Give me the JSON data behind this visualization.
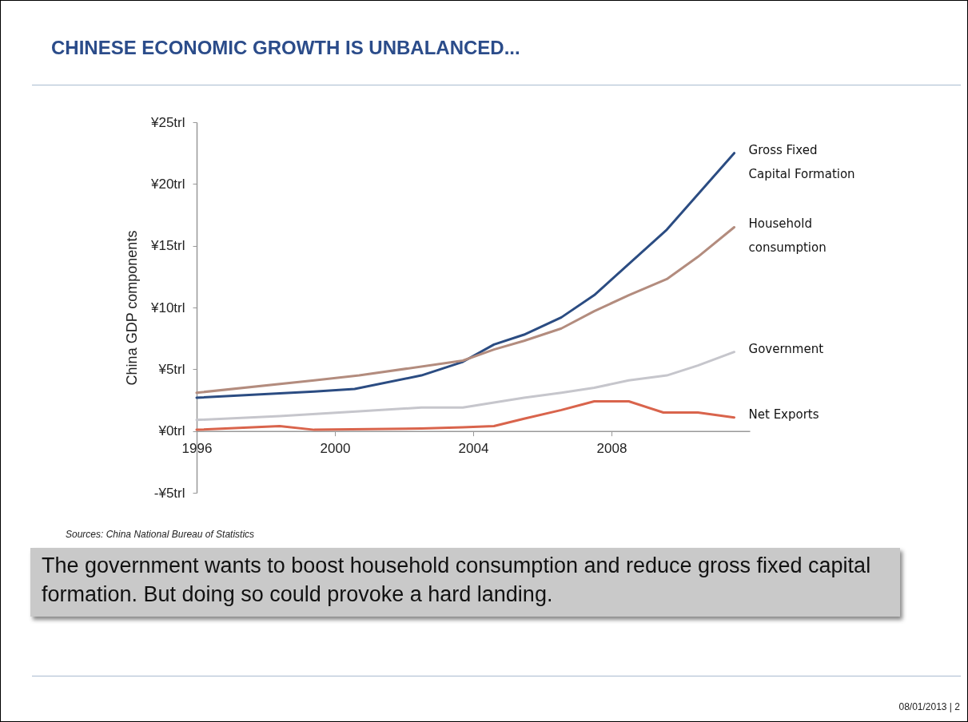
{
  "chart_data": {
    "type": "line",
    "title": "CHINESE ECONOMIC GROWTH IS UNBALANCED...",
    "ylabel": "China GDP components",
    "xlim": [
      1996,
      2012
    ],
    "xticks": [
      1996,
      2000,
      2004,
      2008
    ],
    "ylim": [
      -5,
      25
    ],
    "yticks": [
      {
        "value": -5,
        "label": "-¥5trl"
      },
      {
        "value": 0,
        "label": "¥0trl"
      },
      {
        "value": 5,
        "label": "¥5trl"
      },
      {
        "value": 10,
        "label": "¥10trl"
      },
      {
        "value": 15,
        "label": "¥15trl"
      },
      {
        "value": 20,
        "label": "¥20trl"
      },
      {
        "value": 25,
        "label": "¥25trl"
      }
    ],
    "grid": false,
    "series": [
      {
        "name": "Gross Fixed Capital Formation",
        "color": "#2b4c82",
        "x": [
          1996.0,
          1999.4,
          2000.57,
          2002.5,
          2003.7,
          2004.6,
          2005.47,
          2006.55,
          2007.5,
          2009.6,
          2011.55
        ],
        "values": [
          2.7,
          3.2,
          3.4,
          4.5,
          5.6,
          7.0,
          7.8,
          9.2,
          11.0,
          16.3,
          22.5
        ]
      },
      {
        "name": "Household consumption",
        "color": "#b38c7e",
        "x": [
          1996.0,
          1999.4,
          2000.7,
          2003.7,
          2004.6,
          2005.47,
          2006.55,
          2007.5,
          2008.5,
          2009.6,
          2010.5,
          2011.55
        ],
        "values": [
          3.1,
          4.1,
          4.5,
          5.7,
          6.6,
          7.3,
          8.3,
          9.7,
          11.0,
          12.3,
          14.1,
          16.5
        ]
      },
      {
        "name": "Government",
        "color": "#c6c6cc",
        "x": [
          1996.0,
          1998.4,
          2000.7,
          2002.5,
          2003.7,
          2004.6,
          2005.47,
          2006.55,
          2007.5,
          2008.5,
          2009.6,
          2010.5,
          2011.55
        ],
        "values": [
          0.9,
          1.2,
          1.6,
          1.9,
          1.9,
          2.3,
          2.7,
          3.1,
          3.5,
          4.1,
          4.5,
          5.3,
          6.4
        ]
      },
      {
        "name": "Net Exports",
        "color": "#d9644c",
        "x": [
          1996.0,
          1998.4,
          1999.4,
          2002.5,
          2003.7,
          2004.6,
          2005.47,
          2006.55,
          2007.5,
          2008.5,
          2009.5,
          2010.5,
          2011.55
        ],
        "values": [
          0.1,
          0.4,
          0.1,
          0.2,
          0.3,
          0.4,
          1.0,
          1.7,
          2.4,
          2.4,
          1.5,
          1.5,
          1.1
        ]
      }
    ],
    "annotations": [
      "Sources: China National Bureau of Statistics",
      "The government wants to boost household consumption and reduce gross fixed capital formation. But doing so could provoke a hard landing.",
      "08/01/2013 | 2"
    ]
  }
}
